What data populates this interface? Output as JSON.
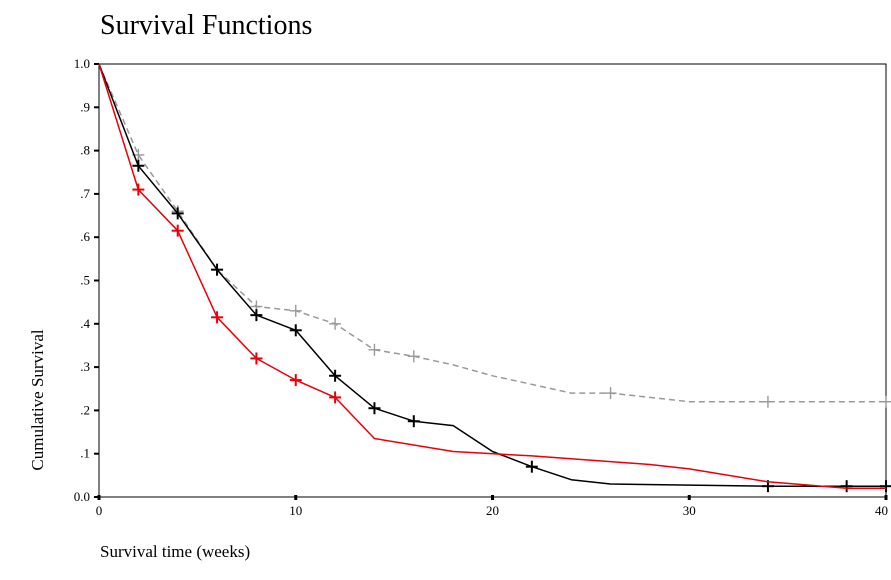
{
  "chart_data": {
    "type": "line",
    "title": "Survival Functions",
    "xlabel": "Survival time (weeks)",
    "ylabel": "Cumulative Survival",
    "xlim": [
      0,
      40
    ],
    "ylim": [
      0,
      1
    ],
    "x_ticks": [
      "0",
      "10",
      "20",
      "30",
      "40"
    ],
    "y_ticks": [
      "0.0",
      ".1",
      ".2",
      ".3",
      ".4",
      ".5",
      ".6",
      ".7",
      ".8",
      ".9",
      "1.0"
    ],
    "grid": false,
    "legend": "none",
    "series": [
      {
        "color": "#999999",
        "dash": "dashed",
        "points": [
          [
            0,
            1.0
          ],
          [
            2,
            0.79
          ],
          [
            4,
            0.66
          ],
          [
            6,
            0.525
          ],
          [
            8,
            0.44
          ],
          [
            10,
            0.43
          ],
          [
            12,
            0.4
          ],
          [
            14,
            0.34
          ],
          [
            16,
            0.325
          ],
          [
            18,
            0.305
          ],
          [
            20,
            0.28
          ],
          [
            22,
            0.26
          ],
          [
            24,
            0.24
          ],
          [
            26,
            0.24
          ],
          [
            28,
            0.23
          ],
          [
            30,
            0.22
          ],
          [
            34,
            0.22
          ],
          [
            40,
            0.22
          ]
        ],
        "censored": [
          [
            2,
            0.79
          ],
          [
            4,
            0.66
          ],
          [
            6,
            0.525
          ],
          [
            8,
            0.44
          ],
          [
            10,
            0.43
          ],
          [
            12,
            0.4
          ],
          [
            14,
            0.34
          ],
          [
            16,
            0.325
          ],
          [
            26,
            0.24
          ],
          [
            34,
            0.22
          ],
          [
            40,
            0.22
          ]
        ]
      },
      {
        "color": "#000000",
        "dash": "solid",
        "points": [
          [
            0,
            1.0
          ],
          [
            2,
            0.765
          ],
          [
            4,
            0.655
          ],
          [
            6,
            0.525
          ],
          [
            8,
            0.42
          ],
          [
            10,
            0.385
          ],
          [
            12,
            0.28
          ],
          [
            14,
            0.205
          ],
          [
            16,
            0.175
          ],
          [
            18,
            0.165
          ],
          [
            20,
            0.105
          ],
          [
            22,
            0.07
          ],
          [
            24,
            0.04
          ],
          [
            26,
            0.03
          ],
          [
            34,
            0.025
          ],
          [
            38,
            0.025
          ],
          [
            40,
            0.025
          ]
        ],
        "censored": [
          [
            2,
            0.765
          ],
          [
            4,
            0.655
          ],
          [
            6,
            0.525
          ],
          [
            8,
            0.42
          ],
          [
            10,
            0.385
          ],
          [
            12,
            0.28
          ],
          [
            14,
            0.205
          ],
          [
            16,
            0.175
          ],
          [
            22,
            0.07
          ],
          [
            34,
            0.025
          ],
          [
            38,
            0.025
          ],
          [
            40,
            0.025
          ]
        ]
      },
      {
        "color": "#e8000b",
        "dash": "solid",
        "points": [
          [
            0,
            1.0
          ],
          [
            2,
            0.71
          ],
          [
            4,
            0.615
          ],
          [
            6,
            0.415
          ],
          [
            8,
            0.32
          ],
          [
            10,
            0.27
          ],
          [
            12,
            0.23
          ],
          [
            14,
            0.135
          ],
          [
            18,
            0.105
          ],
          [
            22,
            0.095
          ],
          [
            28,
            0.075
          ],
          [
            30,
            0.065
          ],
          [
            34,
            0.035
          ],
          [
            38,
            0.02
          ],
          [
            40,
            0.02
          ]
        ],
        "censored": [
          [
            2,
            0.71
          ],
          [
            4,
            0.615
          ],
          [
            6,
            0.415
          ],
          [
            8,
            0.32
          ],
          [
            10,
            0.27
          ],
          [
            12,
            0.23
          ]
        ]
      }
    ]
  }
}
